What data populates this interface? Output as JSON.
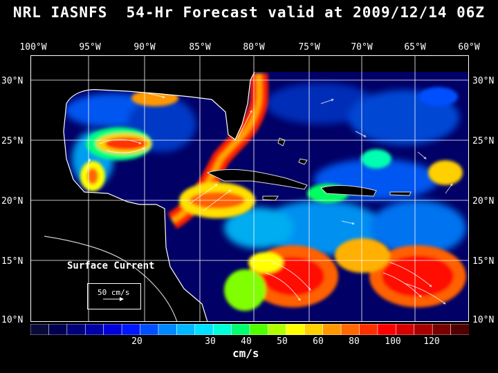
{
  "header": {
    "title": "NRL IASNFS  54-Hr Forecast valid at 2009/12/14 06Z"
  },
  "axes": {
    "lon_labels": [
      "100°W",
      "95°W",
      "90°W",
      "85°W",
      "80°W",
      "75°W",
      "70°W",
      "65°W",
      "60°W"
    ],
    "lat_labels": [
      "30°N",
      "25°N",
      "20°N",
      "15°N",
      "10°N"
    ]
  },
  "colorbar": {
    "tick_labels": [
      "20",
      "30",
      "40",
      "50",
      "60",
      "80",
      "100",
      "120"
    ],
    "units": "cm/s",
    "colors": [
      "#0a0a3a",
      "#000050",
      "#00007a",
      "#0000a8",
      "#0000d8",
      "#0018ff",
      "#0050ff",
      "#0088ff",
      "#00b8ff",
      "#00e0ff",
      "#00ffd8",
      "#00ff70",
      "#50ff00",
      "#b0ff00",
      "#ffff00",
      "#ffd000",
      "#ff9800",
      "#ff6800",
      "#ff3000",
      "#ff0000",
      "#d80000",
      "#a80000",
      "#780000",
      "#500000"
    ]
  },
  "legend": {
    "title": "Surface Current",
    "value_label": "50 cm/s"
  },
  "colors": {
    "land": "#000000",
    "coast": "#ffffff",
    "grid": "#ffffff"
  }
}
